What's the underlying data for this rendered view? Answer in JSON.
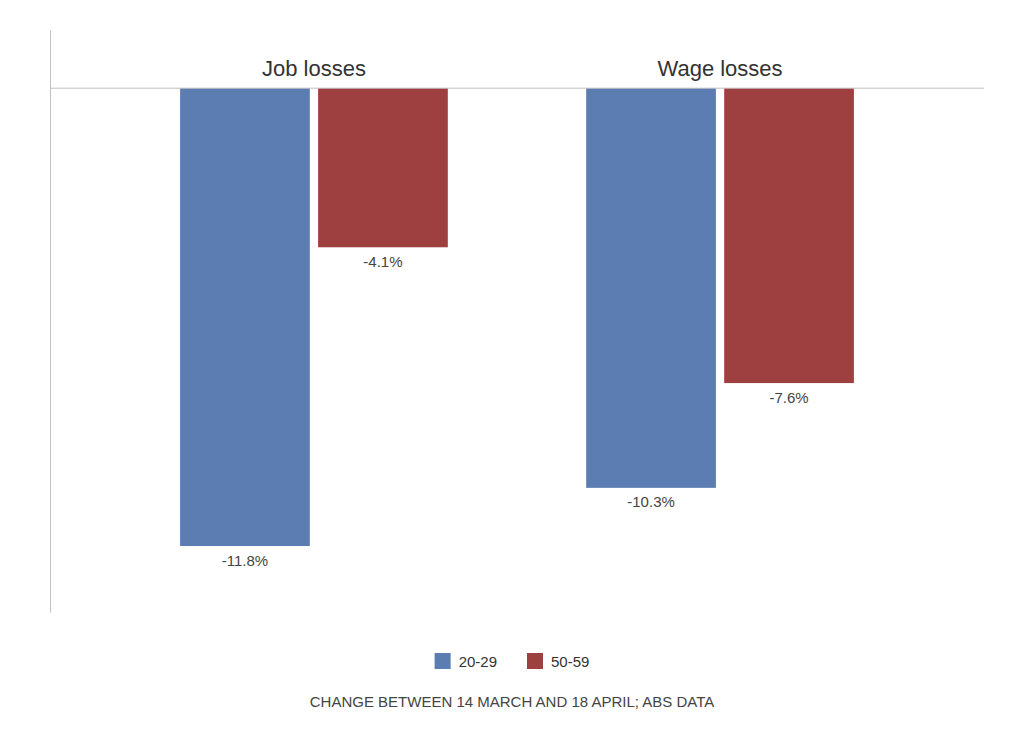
{
  "chart_data": {
    "type": "bar",
    "subtitle": "CHANGE BETWEEN 14 MARCH AND 18 APRIL; ABS DATA",
    "categories": [
      "Job losses",
      "Wage losses"
    ],
    "series": [
      {
        "name": "20-29",
        "color": "#5b7db1",
        "values": [
          -11.8,
          -10.3
        ],
        "value_labels": [
          "-11.8%",
          "-10.3%"
        ]
      },
      {
        "name": "50-59",
        "color": "#9e4040",
        "values": [
          -4.1,
          -7.6
        ],
        "value_labels": [
          "-4.1%",
          "-7.6%"
        ]
      }
    ],
    "ylim": [
      -13.5,
      1.5
    ],
    "data_labels": true,
    "tick_labels": false,
    "grid": false,
    "legend": "bottom"
  }
}
